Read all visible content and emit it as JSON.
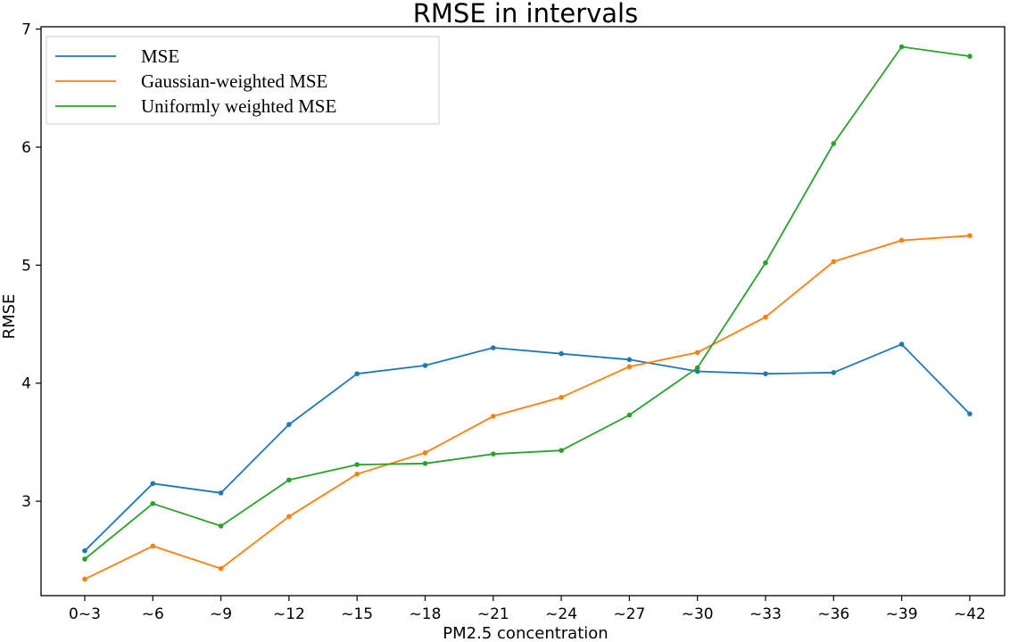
{
  "chart_data": {
    "type": "line",
    "title": "RMSE in intervals",
    "xlabel": "PM2.5 concentration",
    "ylabel": "RMSE",
    "categories": [
      "0~3",
      "~6",
      "~9",
      "~12",
      "~15",
      "~18",
      "~21",
      "~24",
      "~27",
      "~30",
      "~33",
      "~36",
      "~39",
      "~42"
    ],
    "yticks": [
      3,
      4,
      5,
      6,
      7
    ],
    "ylim": [
      2.2,
      7.02
    ],
    "grid": false,
    "legend_position": "top-left",
    "series": [
      {
        "name": "MSE",
        "color": "#1f77b4",
        "values": [
          2.58,
          3.15,
          3.07,
          3.65,
          4.08,
          4.15,
          4.3,
          4.25,
          4.2,
          4.1,
          4.08,
          4.09,
          4.33,
          3.74
        ]
      },
      {
        "name": "Gaussian-weighted MSE",
        "color": "#ff7f0e",
        "values": [
          2.34,
          2.62,
          2.43,
          2.87,
          3.23,
          3.41,
          3.72,
          3.88,
          4.14,
          4.26,
          4.56,
          5.03,
          5.21,
          5.25
        ]
      },
      {
        "name": "Uniformly weighted MSE",
        "color": "#2ca02c",
        "values": [
          2.51,
          2.98,
          2.79,
          3.18,
          3.31,
          3.32,
          3.4,
          3.43,
          3.73,
          4.13,
          5.02,
          6.03,
          6.85,
          6.77
        ]
      }
    ]
  }
}
